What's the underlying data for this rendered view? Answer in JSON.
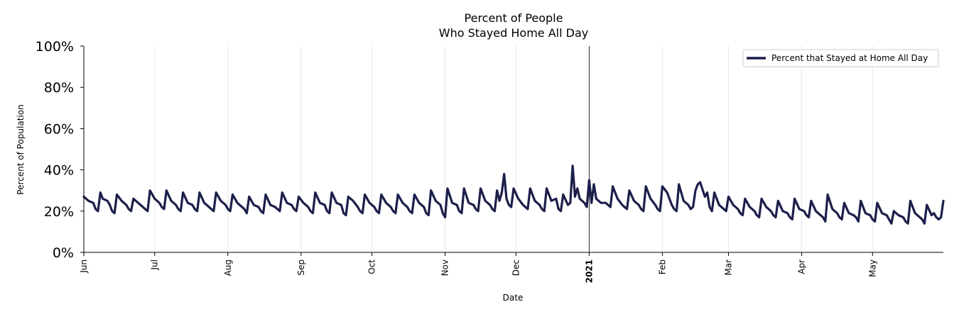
{
  "chart_data": {
    "type": "line",
    "title": [
      "Percent of People",
      "Who Stayed Home All Day"
    ],
    "xlabel": "Date",
    "ylabel": "Percent of Population",
    "x_range": [
      "2020-06-01",
      "2021-05-31"
    ],
    "ylim": [
      0,
      100
    ],
    "y_ticks": [
      "0%",
      "20%",
      "40%",
      "60%",
      "80%",
      "100%"
    ],
    "x_ticks": [
      {
        "label": "Jun",
        "date": "2020-06-01"
      },
      {
        "label": "Jul",
        "date": "2020-07-01"
      },
      {
        "label": "Aug",
        "date": "2020-08-01"
      },
      {
        "label": "Sep",
        "date": "2020-09-01"
      },
      {
        "label": "Oct",
        "date": "2020-10-01"
      },
      {
        "label": "Nov",
        "date": "2020-11-01"
      },
      {
        "label": "Dec",
        "date": "2020-12-01"
      },
      {
        "label": "2021",
        "date": "2021-01-01",
        "bold": true
      },
      {
        "label": "Feb",
        "date": "2021-02-01"
      },
      {
        "label": "Mar",
        "date": "2021-03-01"
      },
      {
        "label": "Apr",
        "date": "2021-04-01"
      },
      {
        "label": "May",
        "date": "2021-05-01"
      }
    ],
    "grid": "vertical",
    "reference_line": "2021-01-01",
    "legend_position": "top-right",
    "series": [
      {
        "name": "Percent that Stayed at Home All Day",
        "color": "#1c1f4a",
        "points": [
          [
            "2020-06-01",
            27
          ],
          [
            "2020-06-03",
            25
          ],
          [
            "2020-06-05",
            24
          ],
          [
            "2020-06-06",
            21
          ],
          [
            "2020-06-07",
            20
          ],
          [
            "2020-06-08",
            29
          ],
          [
            "2020-06-09",
            26
          ],
          [
            "2020-06-11",
            25
          ],
          [
            "2020-06-12",
            23
          ],
          [
            "2020-06-13",
            20
          ],
          [
            "2020-06-14",
            19
          ],
          [
            "2020-06-15",
            28
          ],
          [
            "2020-06-17",
            25
          ],
          [
            "2020-06-19",
            23
          ],
          [
            "2020-06-20",
            21
          ],
          [
            "2020-06-21",
            20
          ],
          [
            "2020-06-22",
            26
          ],
          [
            "2020-06-24",
            24
          ],
          [
            "2020-06-26",
            22
          ],
          [
            "2020-06-27",
            21
          ],
          [
            "2020-06-28",
            20
          ],
          [
            "2020-06-29",
            30
          ],
          [
            "2020-07-01",
            26
          ],
          [
            "2020-07-03",
            24
          ],
          [
            "2020-07-04",
            22
          ],
          [
            "2020-07-05",
            21
          ],
          [
            "2020-07-06",
            30
          ],
          [
            "2020-07-08",
            25
          ],
          [
            "2020-07-10",
            23
          ],
          [
            "2020-07-11",
            21
          ],
          [
            "2020-07-12",
            20
          ],
          [
            "2020-07-13",
            29
          ],
          [
            "2020-07-15",
            24
          ],
          [
            "2020-07-17",
            23
          ],
          [
            "2020-07-18",
            21
          ],
          [
            "2020-07-19",
            20
          ],
          [
            "2020-07-20",
            29
          ],
          [
            "2020-07-22",
            24
          ],
          [
            "2020-07-24",
            22
          ],
          [
            "2020-07-25",
            21
          ],
          [
            "2020-07-26",
            20
          ],
          [
            "2020-07-27",
            29
          ],
          [
            "2020-07-29",
            25
          ],
          [
            "2020-07-31",
            23
          ],
          [
            "2020-08-01",
            21
          ],
          [
            "2020-08-02",
            20
          ],
          [
            "2020-08-03",
            28
          ],
          [
            "2020-08-05",
            24
          ],
          [
            "2020-08-07",
            22
          ],
          [
            "2020-08-08",
            21
          ],
          [
            "2020-08-09",
            19
          ],
          [
            "2020-08-10",
            27
          ],
          [
            "2020-08-12",
            23
          ],
          [
            "2020-08-14",
            22
          ],
          [
            "2020-08-15",
            20
          ],
          [
            "2020-08-16",
            19
          ],
          [
            "2020-08-17",
            28
          ],
          [
            "2020-08-19",
            23
          ],
          [
            "2020-08-21",
            22
          ],
          [
            "2020-08-22",
            21
          ],
          [
            "2020-08-23",
            20
          ],
          [
            "2020-08-24",
            29
          ],
          [
            "2020-08-26",
            24
          ],
          [
            "2020-08-28",
            23
          ],
          [
            "2020-08-29",
            21
          ],
          [
            "2020-08-30",
            20
          ],
          [
            "2020-08-31",
            27
          ],
          [
            "2020-09-02",
            24
          ],
          [
            "2020-09-04",
            22
          ],
          [
            "2020-09-05",
            20
          ],
          [
            "2020-09-06",
            19
          ],
          [
            "2020-09-07",
            29
          ],
          [
            "2020-09-09",
            24
          ],
          [
            "2020-09-11",
            23
          ],
          [
            "2020-09-12",
            20
          ],
          [
            "2020-09-13",
            19
          ],
          [
            "2020-09-14",
            29
          ],
          [
            "2020-09-16",
            24
          ],
          [
            "2020-09-18",
            23
          ],
          [
            "2020-09-19",
            19
          ],
          [
            "2020-09-20",
            18
          ],
          [
            "2020-09-21",
            27
          ],
          [
            "2020-09-23",
            25
          ],
          [
            "2020-09-25",
            22
          ],
          [
            "2020-09-26",
            20
          ],
          [
            "2020-09-27",
            19
          ],
          [
            "2020-09-28",
            28
          ],
          [
            "2020-09-30",
            24
          ],
          [
            "2020-10-02",
            22
          ],
          [
            "2020-10-03",
            20
          ],
          [
            "2020-10-04",
            19
          ],
          [
            "2020-10-05",
            28
          ],
          [
            "2020-10-07",
            24
          ],
          [
            "2020-10-09",
            22
          ],
          [
            "2020-10-10",
            20
          ],
          [
            "2020-10-11",
            19
          ],
          [
            "2020-10-12",
            28
          ],
          [
            "2020-10-14",
            24
          ],
          [
            "2020-10-16",
            22
          ],
          [
            "2020-10-17",
            20
          ],
          [
            "2020-10-18",
            19
          ],
          [
            "2020-10-19",
            28
          ],
          [
            "2020-10-21",
            24
          ],
          [
            "2020-10-23",
            22
          ],
          [
            "2020-10-24",
            19
          ],
          [
            "2020-10-25",
            18
          ],
          [
            "2020-10-26",
            30
          ],
          [
            "2020-10-28",
            25
          ],
          [
            "2020-10-30",
            23
          ],
          [
            "2020-10-31",
            19
          ],
          [
            "2020-11-01",
            17
          ],
          [
            "2020-11-02",
            31
          ],
          [
            "2020-11-04",
            24
          ],
          [
            "2020-11-06",
            23
          ],
          [
            "2020-11-07",
            20
          ],
          [
            "2020-11-08",
            19
          ],
          [
            "2020-11-09",
            31
          ],
          [
            "2020-11-11",
            24
          ],
          [
            "2020-11-13",
            23
          ],
          [
            "2020-11-14",
            21
          ],
          [
            "2020-11-15",
            20
          ],
          [
            "2020-11-16",
            31
          ],
          [
            "2020-11-18",
            25
          ],
          [
            "2020-11-20",
            23
          ],
          [
            "2020-11-21",
            21
          ],
          [
            "2020-11-22",
            20
          ],
          [
            "2020-11-23",
            30
          ],
          [
            "2020-11-24",
            25
          ],
          [
            "2020-11-25",
            29
          ],
          [
            "2020-11-26",
            38
          ],
          [
            "2020-11-27",
            26
          ],
          [
            "2020-11-28",
            23
          ],
          [
            "2020-11-29",
            22
          ],
          [
            "2020-11-30",
            31
          ],
          [
            "2020-12-02",
            26
          ],
          [
            "2020-12-04",
            23
          ],
          [
            "2020-12-05",
            22
          ],
          [
            "2020-12-06",
            21
          ],
          [
            "2020-12-07",
            31
          ],
          [
            "2020-12-09",
            25
          ],
          [
            "2020-12-11",
            23
          ],
          [
            "2020-12-12",
            21
          ],
          [
            "2020-12-13",
            20
          ],
          [
            "2020-12-14",
            31
          ],
          [
            "2020-12-16",
            25
          ],
          [
            "2020-12-18",
            26
          ],
          [
            "2020-12-19",
            21
          ],
          [
            "2020-12-20",
            20
          ],
          [
            "2020-12-21",
            28
          ],
          [
            "2020-12-23",
            23
          ],
          [
            "2020-12-24",
            24
          ],
          [
            "2020-12-25",
            42
          ],
          [
            "2020-12-26",
            27
          ],
          [
            "2020-12-27",
            31
          ],
          [
            "2020-12-28",
            26
          ],
          [
            "2020-12-30",
            24
          ],
          [
            "2020-12-31",
            22
          ],
          [
            "2021-01-01",
            35
          ],
          [
            "2021-01-02",
            24
          ],
          [
            "2021-01-03",
            33
          ],
          [
            "2021-01-04",
            26
          ],
          [
            "2021-01-06",
            24
          ],
          [
            "2021-01-08",
            24
          ],
          [
            "2021-01-09",
            23
          ],
          [
            "2021-01-10",
            22
          ],
          [
            "2021-01-11",
            32
          ],
          [
            "2021-01-13",
            26
          ],
          [
            "2021-01-15",
            23
          ],
          [
            "2021-01-16",
            22
          ],
          [
            "2021-01-17",
            21
          ],
          [
            "2021-01-18",
            30
          ],
          [
            "2021-01-20",
            25
          ],
          [
            "2021-01-22",
            23
          ],
          [
            "2021-01-23",
            21
          ],
          [
            "2021-01-24",
            20
          ],
          [
            "2021-01-25",
            32
          ],
          [
            "2021-01-27",
            26
          ],
          [
            "2021-01-29",
            23
          ],
          [
            "2021-01-30",
            21
          ],
          [
            "2021-01-31",
            20
          ],
          [
            "2021-02-01",
            32
          ],
          [
            "2021-02-03",
            29
          ],
          [
            "2021-02-05",
            23
          ],
          [
            "2021-02-06",
            21
          ],
          [
            "2021-02-07",
            20
          ],
          [
            "2021-02-08",
            33
          ],
          [
            "2021-02-10",
            25
          ],
          [
            "2021-02-12",
            23
          ],
          [
            "2021-02-13",
            21
          ],
          [
            "2021-02-14",
            22
          ],
          [
            "2021-02-15",
            30
          ],
          [
            "2021-02-16",
            33
          ],
          [
            "2021-02-17",
            34
          ],
          [
            "2021-02-19",
            27
          ],
          [
            "2021-02-20",
            29
          ],
          [
            "2021-02-21",
            22
          ],
          [
            "2021-02-22",
            20
          ],
          [
            "2021-02-23",
            29
          ],
          [
            "2021-02-25",
            23
          ],
          [
            "2021-02-27",
            21
          ],
          [
            "2021-02-28",
            20
          ],
          [
            "2021-03-01",
            27
          ],
          [
            "2021-03-03",
            23
          ],
          [
            "2021-03-05",
            21
          ],
          [
            "2021-03-06",
            19
          ],
          [
            "2021-03-07",
            18
          ],
          [
            "2021-03-08",
            26
          ],
          [
            "2021-03-10",
            22
          ],
          [
            "2021-03-12",
            20
          ],
          [
            "2021-03-13",
            18
          ],
          [
            "2021-03-14",
            17
          ],
          [
            "2021-03-15",
            26
          ],
          [
            "2021-03-17",
            22
          ],
          [
            "2021-03-19",
            20
          ],
          [
            "2021-03-20",
            18
          ],
          [
            "2021-03-21",
            17
          ],
          [
            "2021-03-22",
            25
          ],
          [
            "2021-03-24",
            20
          ],
          [
            "2021-03-26",
            19
          ],
          [
            "2021-03-27",
            17
          ],
          [
            "2021-03-28",
            16
          ],
          [
            "2021-03-29",
            26
          ],
          [
            "2021-03-31",
            21
          ],
          [
            "2021-04-02",
            20
          ],
          [
            "2021-04-03",
            18
          ],
          [
            "2021-04-04",
            17
          ],
          [
            "2021-04-05",
            25
          ],
          [
            "2021-04-07",
            20
          ],
          [
            "2021-04-09",
            18
          ],
          [
            "2021-04-10",
            17
          ],
          [
            "2021-04-11",
            15
          ],
          [
            "2021-04-12",
            28
          ],
          [
            "2021-04-14",
            21
          ],
          [
            "2021-04-16",
            19
          ],
          [
            "2021-04-17",
            17
          ],
          [
            "2021-04-18",
            16
          ],
          [
            "2021-04-19",
            24
          ],
          [
            "2021-04-21",
            19
          ],
          [
            "2021-04-23",
            18
          ],
          [
            "2021-04-24",
            17
          ],
          [
            "2021-04-25",
            15
          ],
          [
            "2021-04-26",
            25
          ],
          [
            "2021-04-28",
            19
          ],
          [
            "2021-04-30",
            18
          ],
          [
            "2021-05-01",
            16
          ],
          [
            "2021-05-02",
            15
          ],
          [
            "2021-05-03",
            24
          ],
          [
            "2021-05-05",
            19
          ],
          [
            "2021-05-07",
            18
          ],
          [
            "2021-05-08",
            16
          ],
          [
            "2021-05-09",
            14
          ],
          [
            "2021-05-10",
            20
          ],
          [
            "2021-05-12",
            18
          ],
          [
            "2021-05-14",
            17
          ],
          [
            "2021-05-15",
            15
          ],
          [
            "2021-05-16",
            14
          ],
          [
            "2021-05-17",
            25
          ],
          [
            "2021-05-19",
            19
          ],
          [
            "2021-05-21",
            17
          ],
          [
            "2021-05-22",
            16
          ],
          [
            "2021-05-23",
            14
          ],
          [
            "2021-05-24",
            23
          ],
          [
            "2021-05-26",
            18
          ],
          [
            "2021-05-27",
            19
          ],
          [
            "2021-05-28",
            17
          ],
          [
            "2021-05-29",
            16
          ],
          [
            "2021-05-30",
            17
          ],
          [
            "2021-05-31",
            25
          ]
        ]
      }
    ]
  }
}
